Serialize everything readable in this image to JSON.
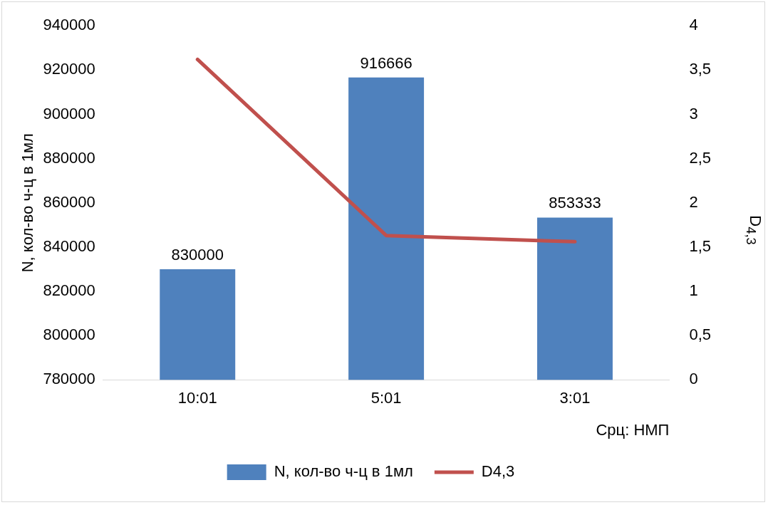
{
  "chart_data": {
    "type": "bar",
    "ylabel": "N, кол-во ч-ц в 1мл",
    "y2label": "D$_{4,3}$",
    "xlabel": "Срц: НМП",
    "categories": [
      "10:01",
      "5:01",
      "3:01"
    ],
    "series": [
      {
        "name": "N, кол-во ч-ц в 1мл",
        "color": "#4f81bd",
        "values": [
          830000,
          916666,
          853333
        ],
        "value_labels": [
          "830000",
          "916666",
          "853333"
        ]
      },
      {
        "name": "D4,3",
        "type": "line",
        "axis": "y2",
        "color": "#c0504d",
        "values": [
          3.62,
          1.63,
          1.56
        ],
        "marker": "none"
      }
    ],
    "ylim": [
      780000,
      940000
    ],
    "yticks": [
      780000,
      800000,
      820000,
      840000,
      860000,
      880000,
      900000,
      920000,
      940000
    ],
    "y2lim": [
      0,
      4
    ],
    "y2ticks": [
      0,
      {
        "value": 0.5,
        "label": "0,5"
      },
      1,
      {
        "value": 1.5,
        "label": "1,5"
      },
      2,
      {
        "value": 2.5,
        "label": "2,5"
      },
      3,
      {
        "value": 3.5,
        "label": "3,5"
      },
      4
    ],
    "grid": false,
    "legend": "bottom"
  }
}
